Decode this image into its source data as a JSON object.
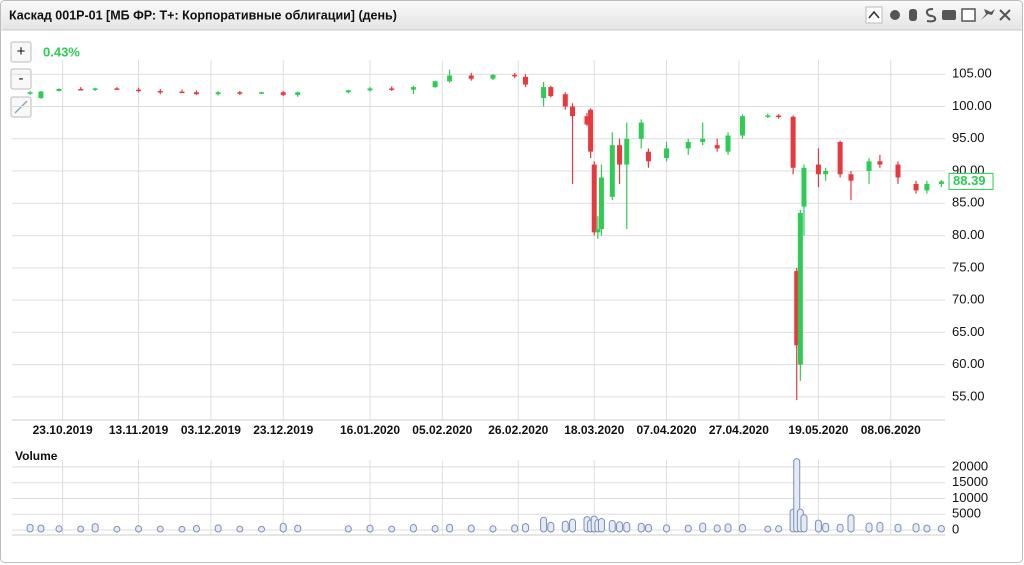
{
  "window": {
    "title": "Каскад 001P-01 [МБ ФР: Т+: Корпоративные облигации] (день)",
    "zoom_in": "+",
    "zoom_out": "-"
  },
  "chart_data": {
    "type": "candlestick",
    "change": "0.43%",
    "up_color": "#2ecc55",
    "down_color": "#e8393f",
    "grid": true,
    "x": [
      "14.10.2019",
      "17.10.2019",
      "22.10.2019",
      "28.10.2019",
      "01.11.2019",
      "07.11.2019",
      "13.11.2019",
      "19.11.2019",
      "25.11.2019",
      "29.11.2019",
      "05.12.2019",
      "11.12.2019",
      "17.12.2019",
      "23.12.2019",
      "27.12.2019",
      "10.01.2020",
      "16.01.2020",
      "22.01.2020",
      "28.01.2020",
      "03.02.2020",
      "07.02.2020",
      "13.02.2020",
      "19.02.2020",
      "25.02.2020",
      "28.02.2020",
      "04.03.2020",
      "06.03.2020",
      "10.03.2020",
      "12.03.2020",
      "16.03.2020",
      "17.03.2020",
      "18.03.2020",
      "19.03.2020",
      "20.03.2020",
      "23.03.2020",
      "25.03.2020",
      "27.03.2020",
      "31.03.2020",
      "02.04.2020",
      "07.04.2020",
      "13.04.2020",
      "17.04.2020",
      "21.04.2020",
      "24.04.2020",
      "28.04.2020",
      "05.05.2020",
      "08.05.2020",
      "12.05.2020",
      "13.05.2020",
      "14.05.2020",
      "15.05.2020",
      "19.05.2020",
      "21.05.2020",
      "25.05.2020",
      "28.05.2020",
      "02.06.2020",
      "05.06.2020",
      "10.06.2020",
      "15.06.2020",
      "18.06.2020",
      "22.06.2020"
    ],
    "open": [
      102.0,
      101.3,
      102.4,
      102.7,
      102.6,
      102.8,
      102.6,
      102.4,
      102.3,
      102.2,
      101.9,
      102.2,
      102.0,
      102.2,
      101.8,
      102.2,
      102.5,
      102.8,
      102.6,
      103.0,
      103.9,
      104.8,
      104.3,
      104.9,
      104.6,
      101.3,
      103.0,
      101.9,
      100.0,
      98.5,
      99.5,
      91.0,
      80.5,
      81.0,
      86.0,
      94.0,
      91.0,
      95.0,
      93.0,
      92.0,
      93.5,
      94.5,
      94.0,
      93.0,
      95.5,
      98.5,
      98.6,
      98.4,
      74.5,
      60.0,
      84.5,
      91.0,
      89.5,
      94.5,
      89.5,
      90.0,
      91.5,
      91.0,
      88.0,
      87.0,
      88.0
    ],
    "high": [
      102.4,
      102.4,
      102.8,
      103.0,
      102.9,
      103.0,
      102.9,
      102.7,
      102.6,
      102.5,
      102.4,
      102.4,
      102.3,
      102.4,
      102.3,
      102.6,
      103.0,
      103.1,
      103.2,
      104.0,
      105.7,
      105.2,
      105.0,
      105.2,
      105.0,
      103.8,
      103.2,
      102.2,
      100.5,
      99.0,
      99.7,
      91.5,
      83.0,
      91.0,
      96.0,
      95.0,
      97.5,
      98.0,
      93.5,
      94.5,
      95.0,
      97.5,
      95.0,
      96.0,
      98.8,
      98.9,
      98.8,
      98.6,
      75.0,
      84.0,
      91.0,
      93.5,
      90.5,
      94.7,
      90.0,
      92.0,
      92.5,
      91.5,
      88.5,
      88.5,
      88.6
    ],
    "low": [
      101.8,
      101.2,
      102.3,
      102.5,
      102.4,
      102.6,
      102.2,
      101.9,
      102.1,
      101.8,
      101.7,
      101.8,
      101.9,
      101.6,
      101.5,
      102.0,
      102.3,
      102.4,
      101.9,
      102.9,
      103.7,
      104.0,
      104.1,
      104.4,
      103.0,
      100.0,
      101.4,
      99.5,
      88.0,
      97.0,
      92.0,
      80.0,
      79.5,
      80.0,
      85.5,
      88.0,
      81.0,
      93.5,
      90.5,
      91.5,
      92.5,
      94.0,
      93.0,
      92.5,
      95.0,
      98.2,
      98.1,
      89.5,
      54.5,
      57.5,
      80.0,
      87.5,
      88.5,
      89.0,
      85.5,
      88.0,
      90.5,
      88.0,
      86.5,
      86.5,
      87.5
    ],
    "close": [
      102.2,
      102.3,
      102.7,
      102.6,
      102.8,
      102.7,
      102.4,
      102.3,
      102.2,
      101.9,
      102.2,
      102.0,
      102.2,
      101.8,
      102.2,
      102.5,
      102.8,
      102.6,
      103.0,
      103.9,
      104.8,
      104.3,
      104.9,
      104.8,
      103.4,
      103.0,
      101.6,
      100.0,
      98.5,
      97.2,
      93.0,
      80.5,
      81.0,
      89.0,
      94.0,
      91.0,
      95.0,
      97.5,
      91.5,
      93.5,
      94.5,
      95.0,
      93.5,
      95.5,
      98.5,
      98.6,
      98.4,
      90.5,
      63.0,
      83.5,
      90.5,
      89.5,
      90.0,
      89.5,
      88.5,
      91.5,
      91.0,
      89.0,
      87.0,
      88.0,
      88.39
    ],
    "xlim": [
      "09.10.2019",
      "23.06.2020"
    ],
    "xticks": [
      "23.10.2019",
      "13.11.2019",
      "03.12.2019",
      "23.12.2019",
      "16.01.2020",
      "05.02.2020",
      "26.02.2020",
      "18.03.2020",
      "07.04.2020",
      "27.04.2020",
      "19.05.2020",
      "08.06.2020"
    ],
    "ylim": [
      52.2,
      107.2
    ],
    "yticks": [
      {
        "value": 55,
        "label": "55.00"
      },
      {
        "value": 60,
        "label": "60.00"
      },
      {
        "value": 65,
        "label": "65.00"
      },
      {
        "value": 70,
        "label": "70.00"
      },
      {
        "value": 75,
        "label": "75.00"
      },
      {
        "value": 80,
        "label": "80.00"
      },
      {
        "value": 85,
        "label": "85.00"
      },
      {
        "value": 90,
        "label": "90.00"
      },
      {
        "value": 95,
        "label": "95.00"
      },
      {
        "value": 100,
        "label": "100.00"
      },
      {
        "value": 105,
        "label": "105.00"
      }
    ],
    "volume": {
      "title": "Volume",
      "color": "#7d8fb3",
      "values": [
        1200,
        900,
        700,
        600,
        1400,
        500,
        700,
        600,
        500,
        800,
        1000,
        600,
        500,
        1500,
        900,
        700,
        900,
        600,
        1100,
        800,
        1200,
        900,
        700,
        1000,
        1400,
        3400,
        1800,
        2200,
        2800,
        3600,
        2500,
        3800,
        2600,
        3000,
        2400,
        2000,
        1800,
        1500,
        1200,
        1000,
        900,
        1600,
        1000,
        1300,
        1100,
        600,
        700,
        6000,
        22000,
        6000,
        4200,
        2500,
        1500,
        1200,
        4200,
        1600,
        1800,
        1200,
        1400,
        900,
        800
      ],
      "ylim": [
        0,
        22200
      ],
      "yticks": [
        0,
        5000,
        10000,
        15000,
        20000
      ]
    }
  }
}
